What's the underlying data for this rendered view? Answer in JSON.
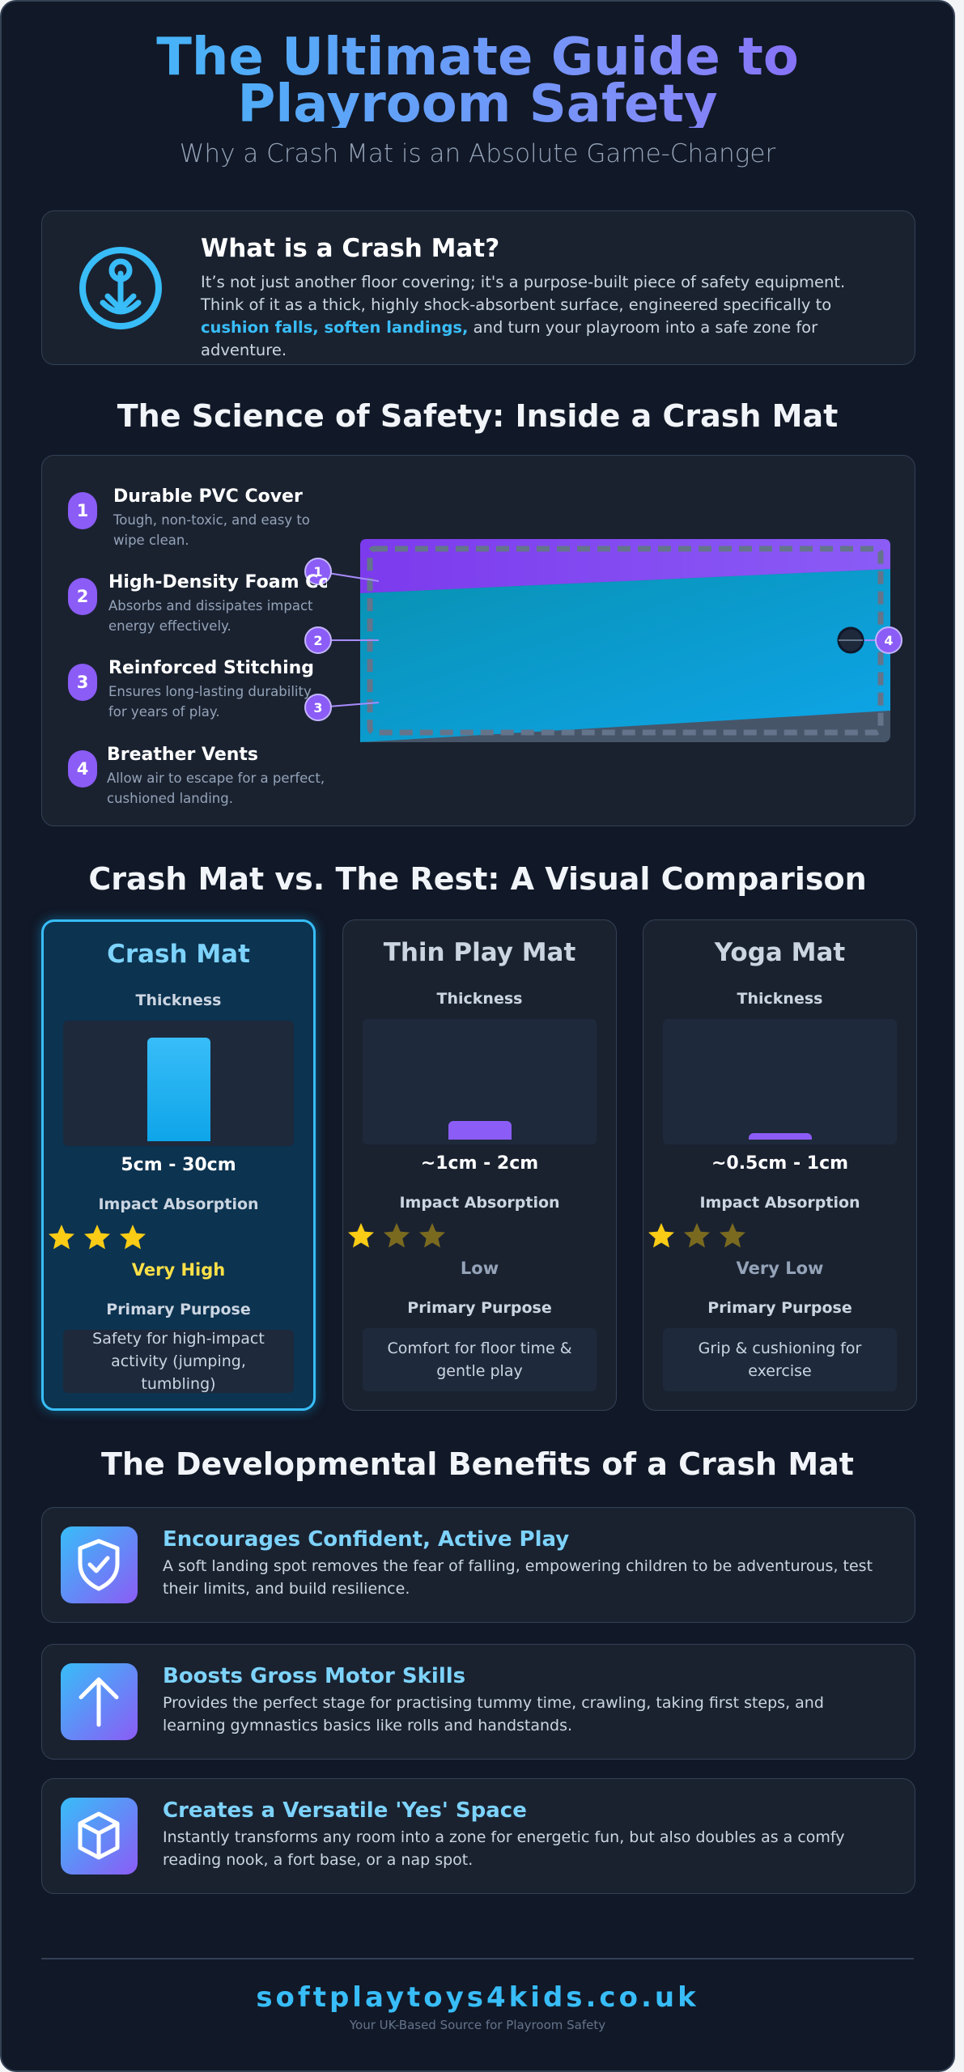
{
  "header": {
    "title": "The Ultimate Guide to Playroom Safety",
    "subtitle": "Why a Crash Mat is an Absolute Game-Changer"
  },
  "intro": {
    "title": "What is a Crash Mat?",
    "body": [
      "It’s not just another floor covering; it's a purpose-built piece of safety equipment. Think of it as a thick, highly shock-absorbent surface, engineered specifically to ",
      "cushion falls, soften landings,",
      " and turn your playroom into a safe zone for adventure."
    ]
  },
  "science": {
    "title": "The Science of Safety: Inside a Crash Mat",
    "layers": [
      {
        "number": 1,
        "title": "Durable PVC Cover",
        "text": "Tough, non-toxic, and easy to wipe clean."
      },
      {
        "number": 2,
        "title": "High-Density Foam Core",
        "text": "Absorbs and dissipates impact energy effectively."
      },
      {
        "number": 3,
        "title": "Reinforced Stitching",
        "text": "Ensures long-lasting durability for years of play."
      },
      {
        "number": 4,
        "title": "Breather Vents",
        "text": "Allow air to escape for a perfect, cushioned landing."
      }
    ]
  },
  "comparison": {
    "title": "Crash Mat vs. The Rest: A Visual Comparison",
    "labels": {
      "thickness": "Thickness",
      "impact": "Impact Absorption",
      "purpose": "Primary Purpose"
    },
    "mats": [
      {
        "name": "Crash Mat",
        "thickness": "5cm - 30cm",
        "rating": 3,
        "rating_label": "Very High",
        "purpose": "Safety for high-impact activity (jumping, tumbling)"
      },
      {
        "name": "Thin Play Mat",
        "thickness": "~1cm - 2cm",
        "rating": 1,
        "rating_label": "Low",
        "purpose": "Comfort for floor time & gentle play"
      },
      {
        "name": "Yoga Mat",
        "thickness": "~0.5cm - 1cm",
        "rating": 1,
        "rating_label": "Very Low",
        "purpose": "Grip & cushioning for exercise"
      }
    ]
  },
  "benefits": {
    "title": "The Developmental Benefits of a Crash Mat",
    "items": [
      {
        "title": "Encourages Confident, Active Play",
        "text": "A soft landing spot removes the fear of falling, empowering children to be adventurous, test their limits, and build resilience."
      },
      {
        "title": "Boosts Gross Motor Skills",
        "text": "Provides the perfect stage for practising tummy time, crawling, taking first steps, and learning gymnastics basics like rolls and handstands."
      },
      {
        "title": "Creates a Versatile 'Yes' Space",
        "text": "Instantly transforms any room into a zone for energetic fun, but also doubles as a comfy reading nook, a fort base, or a nap spot."
      }
    ]
  },
  "footer": {
    "site": "softplaytoys4kids.co.uk",
    "tagline": "Your UK-Based Source for Playroom Safety"
  }
}
